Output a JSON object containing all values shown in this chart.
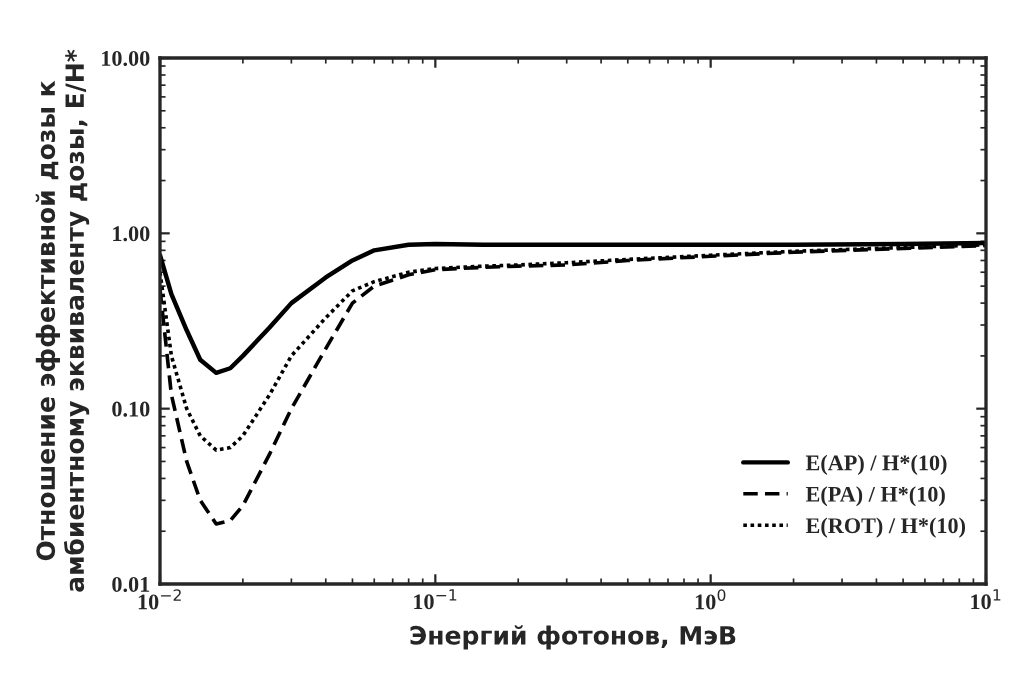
{
  "chart_data": {
    "type": "line",
    "xlabel": "Энергий фотонов, МэВ",
    "ylabel": "Отношение эффективной дозы к\nамбиентному эквиваленту дозы, E/H*",
    "x": [
      0.01,
      0.011,
      0.0125,
      0.014,
      0.016,
      0.018,
      0.02,
      0.025,
      0.03,
      0.04,
      0.05,
      0.06,
      0.08,
      0.1,
      0.15,
      0.2,
      0.3,
      0.5,
      1,
      2,
      5,
      10
    ],
    "series": [
      {
        "name": "E(AP) / H*(10)",
        "color": "#000000",
        "line_style": "solid",
        "values": [
          0.75,
          0.45,
          0.28,
          0.19,
          0.16,
          0.17,
          0.2,
          0.29,
          0.4,
          0.56,
          0.7,
          0.8,
          0.86,
          0.87,
          0.86,
          0.86,
          0.86,
          0.86,
          0.86,
          0.86,
          0.87,
          0.88
        ]
      },
      {
        "name": "E(PA) / H*(10)",
        "color": "#000000",
        "line_style": "dashed",
        "values": [
          0.48,
          0.12,
          0.05,
          0.03,
          0.022,
          0.023,
          0.028,
          0.055,
          0.1,
          0.22,
          0.4,
          0.5,
          0.58,
          0.62,
          0.64,
          0.65,
          0.66,
          0.7,
          0.74,
          0.78,
          0.82,
          0.85
        ]
      },
      {
        "name": "E(ROT) / H*(10)",
        "color": "#000000",
        "line_style": "dotted",
        "values": [
          0.6,
          0.2,
          0.1,
          0.07,
          0.058,
          0.06,
          0.07,
          0.12,
          0.2,
          0.33,
          0.47,
          0.53,
          0.6,
          0.63,
          0.65,
          0.66,
          0.68,
          0.71,
          0.75,
          0.79,
          0.83,
          0.86
        ]
      }
    ],
    "log": "xy",
    "xlim": [
      0.01,
      10
    ],
    "xticks": [
      {
        "value": 0.01,
        "label": "10$^{−2}$"
      },
      {
        "value": 0.1,
        "label": "10$^{−1}$"
      },
      {
        "value": 1,
        "label": "10$^{0}$"
      },
      {
        "value": 10,
        "label": "10$^{1}$"
      }
    ],
    "ylim": [
      0.01,
      10
    ],
    "yticks": [
      {
        "value": 0.01,
        "label": "0.01"
      },
      {
        "value": 0.1,
        "label": "0.10"
      },
      {
        "value": 1,
        "label": "1.00"
      },
      {
        "value": 10,
        "label": "10.00"
      }
    ],
    "grid": false,
    "legend": "lower right"
  }
}
